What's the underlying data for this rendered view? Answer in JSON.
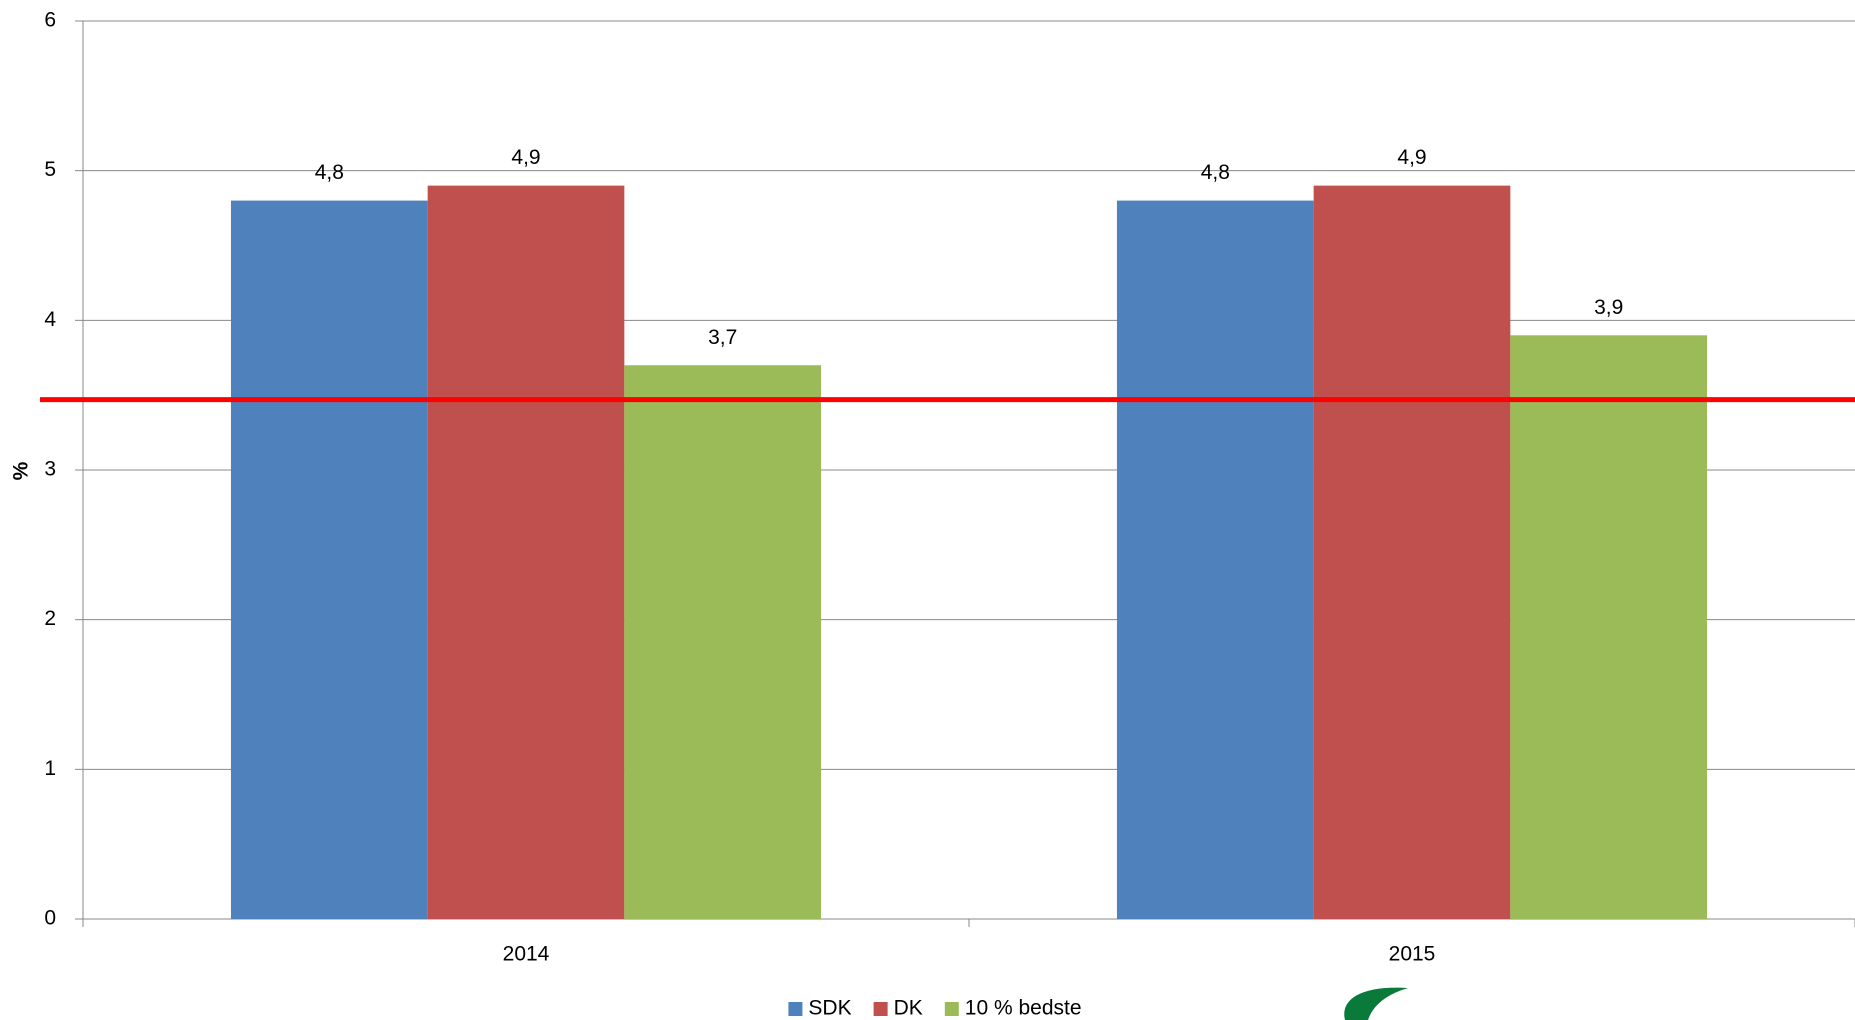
{
  "chart_data": {
    "type": "bar",
    "y_label": "%",
    "categories": [
      "2014",
      "2015"
    ],
    "series": [
      {
        "name": "SDK",
        "color": "#4f81bd",
        "values": [
          4.8,
          4.8
        ],
        "value_labels": [
          "4,8",
          "4,8"
        ]
      },
      {
        "name": "DK",
        "color": "#c0504d",
        "values": [
          4.9,
          4.9
        ],
        "value_labels": [
          "4,9",
          "4,9"
        ]
      },
      {
        "name": "10 % bedste",
        "color": "#9bbb59",
        "values": [
          3.7,
          3.9
        ],
        "value_labels": [
          "3,7",
          "3,9"
        ]
      }
    ],
    "hline": {
      "value": 3.47,
      "color": "#ff0000"
    },
    "ylim": [
      0,
      6
    ],
    "yticks": [
      0,
      1,
      2,
      3,
      4,
      5,
      6
    ],
    "grid": true,
    "legend": "bottom"
  }
}
